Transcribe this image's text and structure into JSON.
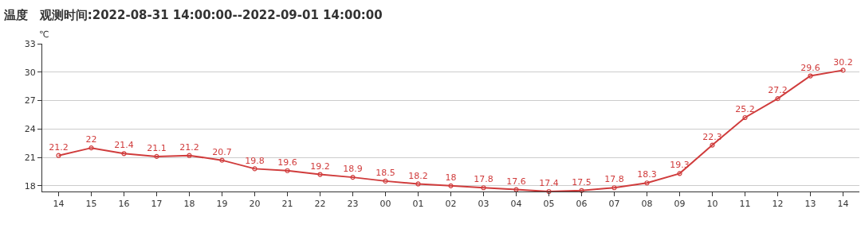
{
  "chart_data": {
    "type": "line",
    "title": "温度",
    "subtitle": "观测时间:2022-08-31 14:00:00--2022-09-01 14:00:00",
    "ylabel": "℃",
    "categories": [
      "14",
      "15",
      "16",
      "17",
      "18",
      "19",
      "20",
      "21",
      "22",
      "23",
      "00",
      "01",
      "02",
      "03",
      "04",
      "05",
      "06",
      "07",
      "08",
      "09",
      "10",
      "11",
      "12",
      "13",
      "14"
    ],
    "series": [
      {
        "color": "#d03c3c",
        "values": [
          21.2,
          22,
          21.4,
          21.1,
          21.2,
          20.7,
          19.8,
          19.6,
          19.2,
          18.9,
          18.5,
          18.2,
          18,
          17.8,
          17.6,
          17.4,
          17.5,
          17.8,
          18.3,
          19.3,
          22.3,
          25.2,
          27.2,
          29.6,
          30.2
        ]
      }
    ],
    "ylim": [
      17.4,
      33
    ],
    "yticks": [
      18,
      21,
      24,
      27,
      30,
      33
    ],
    "grid": "y",
    "data_labels": true,
    "marker": "circle",
    "line_style": "solid"
  }
}
